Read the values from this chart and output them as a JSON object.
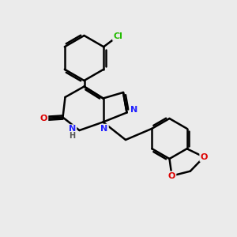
{
  "background_color": "#ebebeb",
  "bond_color": "#000000",
  "bond_width": 1.8,
  "atom_colors": {
    "N": "#2020ff",
    "O": "#dd0000",
    "Cl": "#22bb00",
    "H": "#555555"
  },
  "font_size": 8,
  "figsize": [
    3.0,
    3.0
  ],
  "dpi": 100
}
